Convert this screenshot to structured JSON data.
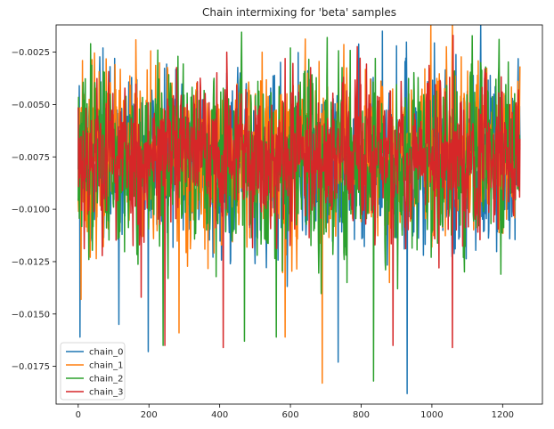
{
  "chart_data": {
    "type": "line",
    "title": "Chain intermixing for 'beta' samples",
    "xlabel": "",
    "ylabel": "",
    "xlim": [
      -62.5,
      1312.5
    ],
    "ylim": [
      -0.0193,
      -0.0012
    ],
    "xticks": [
      0,
      200,
      400,
      600,
      800,
      1000,
      1200
    ],
    "xtick_labels": [
      "0",
      "200",
      "400",
      "600",
      "800",
      "1000",
      "1200"
    ],
    "yticks": [
      -0.0025,
      -0.005,
      -0.0075,
      -0.01,
      -0.0125,
      -0.015,
      -0.0175
    ],
    "ytick_labels": [
      "−0.0025",
      "−0.0050",
      "−0.0075",
      "−0.0100",
      "−0.0125",
      "−0.0150",
      "−0.0175"
    ],
    "grid": false,
    "legend_position": "lower-left",
    "n_samples": 1250,
    "series": [
      {
        "name": "chain_0",
        "color": "#1f77b4",
        "mean": -0.0076,
        "spread": 0.0018,
        "seed": 11,
        "extremes": [
          [
            3,
            -0.0041
          ],
          [
            5,
            -0.0161
          ],
          [
            70,
            -0.0023
          ],
          [
            115,
            -0.0155
          ],
          [
            198,
            -0.0168
          ],
          [
            420,
            -0.0035
          ],
          [
            735,
            -0.0173
          ],
          [
            860,
            -0.0015
          ],
          [
            900,
            -0.0022
          ],
          [
            930,
            -0.0188
          ],
          [
            1090,
            -0.0047
          ]
        ]
      },
      {
        "name": "chain_1",
        "color": "#ff7f0e",
        "mean": -0.0075,
        "spread": 0.0018,
        "seed": 23,
        "extremes": [
          [
            12,
            -0.0029
          ],
          [
            8,
            -0.0143
          ],
          [
            285,
            -0.0159
          ],
          [
            520,
            -0.0025
          ],
          [
            585,
            -0.0161
          ],
          [
            690,
            -0.0183
          ],
          [
            880,
            -0.0135
          ],
          [
            980,
            -0.0033
          ],
          [
            1000,
            -0.0118
          ]
        ]
      },
      {
        "name": "chain_2",
        "color": "#2ca02c",
        "mean": -0.0075,
        "spread": 0.0019,
        "seed": 37,
        "extremes": [
          [
            35,
            -0.0021
          ],
          [
            240,
            -0.0165
          ],
          [
            225,
            -0.0024
          ],
          [
            470,
            -0.0163
          ],
          [
            560,
            -0.0161
          ],
          [
            600,
            -0.0023
          ],
          [
            835,
            -0.0182
          ],
          [
            840,
            -0.0028
          ],
          [
            760,
            -0.0135
          ]
        ]
      },
      {
        "name": "chain_3",
        "color": "#d62728",
        "mean": -0.0074,
        "spread": 0.0016,
        "seed": 53,
        "extremes": [
          [
            178,
            -0.0142
          ],
          [
            245,
            -0.0165
          ],
          [
            410,
            -0.0166
          ],
          [
            420,
            -0.0025
          ],
          [
            890,
            -0.0165
          ],
          [
            1060,
            -0.0017
          ],
          [
            1058,
            -0.0166
          ],
          [
            1150,
            -0.0033
          ],
          [
            1250,
            -0.0148
          ],
          [
            1245,
            -0.0043
          ]
        ]
      }
    ]
  }
}
